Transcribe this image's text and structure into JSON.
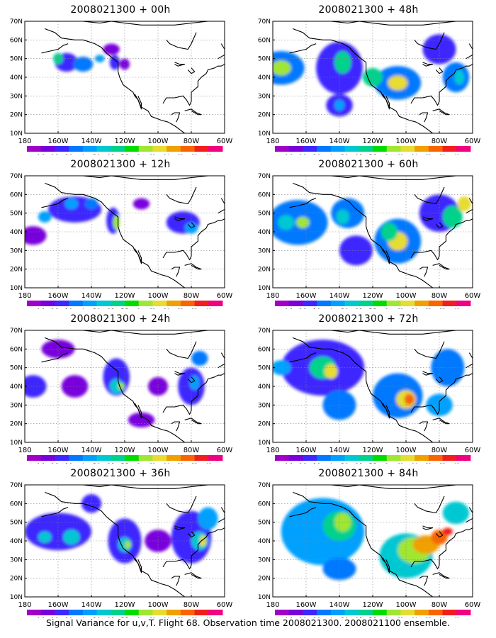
{
  "caption": "Signal Variance for u,v,T. Flight 68. Observation time 2008021300. 2008021100 ensemble.",
  "axes": {
    "lat_labels": [
      "10N",
      "20N",
      "30N",
      "40N",
      "50N",
      "60N",
      "70N"
    ],
    "lon_labels": [
      "180",
      "160W",
      "140W",
      "120W",
      "100W",
      "80W",
      "60W"
    ]
  },
  "colorbar": {
    "labels": [
      "1.6",
      "2.2",
      "3.1",
      "4",
      "5.1",
      "6.3",
      "7.5",
      "9",
      "11",
      "14",
      "21",
      "29",
      "40"
    ],
    "colors": [
      "#a000c8",
      "#7800dc",
      "#3c28ff",
      "#0078ff",
      "#00a0ff",
      "#00c8d2",
      "#00d28c",
      "#00dc00",
      "#a0e632",
      "#e6dc32",
      "#f0a000",
      "#fa6400",
      "#f01e1e",
      "#f00082"
    ]
  },
  "panels": [
    {
      "id": "p00",
      "title": "2008021300 + 00h",
      "col": 0,
      "row": 0,
      "blobs": [
        [
          155,
          48,
          7,
          5,
          2
        ],
        [
          145,
          47,
          6,
          4,
          3
        ],
        [
          128,
          55,
          5,
          3,
          1
        ],
        [
          126,
          48,
          3,
          4,
          2
        ],
        [
          120,
          47,
          3,
          3,
          1
        ],
        [
          135,
          50,
          3,
          2,
          4
        ],
        [
          160,
          50,
          3,
          3,
          6
        ]
      ]
    },
    {
      "id": "p48",
      "title": "2008021300 + 48h",
      "col": 1,
      "row": 0,
      "blobs": [
        [
          175,
          45,
          14,
          9,
          3
        ],
        [
          175,
          45,
          6,
          4,
          8
        ],
        [
          140,
          45,
          14,
          14,
          2
        ],
        [
          138,
          48,
          5,
          6,
          6
        ],
        [
          140,
          25,
          8,
          6,
          2
        ],
        [
          140,
          25,
          3,
          3,
          4
        ],
        [
          105,
          37,
          14,
          9,
          3
        ],
        [
          105,
          37,
          6,
          4,
          9
        ],
        [
          120,
          40,
          6,
          5,
          6
        ],
        [
          80,
          55,
          10,
          8,
          2
        ],
        [
          70,
          40,
          8,
          8,
          3
        ],
        [
          68,
          40,
          3,
          4,
          5
        ]
      ]
    },
    {
      "id": "p12",
      "title": "2008021300 + 12h",
      "col": 0,
      "row": 1,
      "blobs": [
        [
          150,
          52,
          16,
          7,
          2
        ],
        [
          152,
          55,
          4,
          3,
          4
        ],
        [
          168,
          48,
          4,
          3,
          4
        ],
        [
          140,
          55,
          4,
          3,
          3
        ],
        [
          127,
          46,
          4,
          7,
          2
        ],
        [
          125,
          45,
          2,
          4,
          8
        ],
        [
          175,
          38,
          8,
          5,
          1
        ],
        [
          85,
          45,
          10,
          6,
          2
        ],
        [
          80,
          42,
          4,
          3,
          4
        ],
        [
          110,
          55,
          5,
          3,
          1
        ]
      ]
    },
    {
      "id": "p60",
      "title": "2008021300 + 60h",
      "col": 1,
      "row": 1,
      "blobs": [
        [
          165,
          45,
          18,
          12,
          3
        ],
        [
          172,
          45,
          5,
          4,
          5
        ],
        [
          162,
          45,
          4,
          3,
          8
        ],
        [
          135,
          50,
          10,
          8,
          3
        ],
        [
          138,
          48,
          4,
          4,
          5
        ],
        [
          105,
          35,
          14,
          12,
          3
        ],
        [
          105,
          35,
          6,
          5,
          9
        ],
        [
          110,
          40,
          5,
          5,
          6
        ],
        [
          80,
          50,
          12,
          10,
          2
        ],
        [
          72,
          48,
          6,
          6,
          6
        ],
        [
          65,
          55,
          4,
          4,
          9
        ],
        [
          130,
          30,
          10,
          8,
          2
        ]
      ]
    },
    {
      "id": "p24",
      "title": "2008021300 + 24h",
      "col": 0,
      "row": 2,
      "blobs": [
        [
          160,
          60,
          10,
          5,
          1
        ],
        [
          175,
          40,
          8,
          6,
          2
        ],
        [
          150,
          40,
          8,
          6,
          1
        ],
        [
          125,
          45,
          8,
          10,
          2
        ],
        [
          125,
          40,
          4,
          4,
          5
        ],
        [
          122,
          40,
          2,
          2,
          8
        ],
        [
          100,
          40,
          6,
          5,
          1
        ],
        [
          80,
          40,
          8,
          10,
          2
        ],
        [
          78,
          42,
          3,
          4,
          4
        ],
        [
          75,
          55,
          5,
          4,
          3
        ],
        [
          110,
          22,
          8,
          4,
          1
        ]
      ]
    },
    {
      "id": "p72",
      "title": "2008021300 + 72h",
      "col": 1,
      "row": 2,
      "blobs": [
        [
          150,
          50,
          25,
          15,
          2
        ],
        [
          150,
          50,
          8,
          6,
          6
        ],
        [
          145,
          48,
          4,
          4,
          9
        ],
        [
          175,
          50,
          6,
          4,
          4
        ],
        [
          105,
          35,
          15,
          12,
          3
        ],
        [
          100,
          33,
          6,
          5,
          9
        ],
        [
          98,
          33,
          3,
          3,
          11
        ],
        [
          140,
          30,
          10,
          8,
          3
        ],
        [
          75,
          50,
          10,
          10,
          3
        ],
        [
          80,
          30,
          8,
          6,
          4
        ]
      ]
    },
    {
      "id": "p36",
      "title": "2008021300 + 36h",
      "col": 0,
      "row": 3,
      "blobs": [
        [
          160,
          45,
          20,
          10,
          2
        ],
        [
          168,
          42,
          4,
          3,
          5
        ],
        [
          152,
          42,
          5,
          4,
          5
        ],
        [
          140,
          60,
          6,
          5,
          2
        ],
        [
          120,
          40,
          10,
          12,
          2
        ],
        [
          120,
          38,
          4,
          4,
          5
        ],
        [
          118,
          38,
          2,
          2,
          8
        ],
        [
          80,
          42,
          12,
          14,
          2
        ],
        [
          75,
          40,
          5,
          5,
          5
        ],
        [
          73,
          40,
          2,
          3,
          9
        ],
        [
          70,
          52,
          6,
          6,
          4
        ],
        [
          100,
          40,
          8,
          6,
          1
        ]
      ]
    },
    {
      "id": "p84",
      "title": "2008021300 + 84h",
      "col": 1,
      "row": 3,
      "blobs": [
        [
          150,
          45,
          25,
          18,
          4
        ],
        [
          140,
          48,
          10,
          8,
          6
        ],
        [
          138,
          50,
          5,
          5,
          8
        ],
        [
          100,
          32,
          16,
          12,
          5
        ],
        [
          95,
          35,
          10,
          7,
          8
        ],
        [
          88,
          38,
          8,
          5,
          10
        ],
        [
          80,
          42,
          5,
          4,
          11
        ],
        [
          75,
          45,
          3,
          2,
          12
        ],
        [
          140,
          25,
          10,
          6,
          3
        ],
        [
          70,
          55,
          8,
          6,
          5
        ]
      ]
    }
  ]
}
